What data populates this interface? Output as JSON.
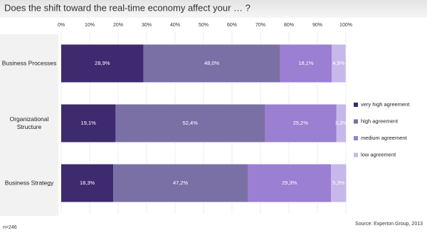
{
  "chart_data": {
    "type": "stacked-bar-horizontal",
    "title": "Does the shift toward the real-time economy affect your … ?",
    "categories": [
      "Business Processes",
      "Organizational Structure",
      "Business Strategy"
    ],
    "series": [
      {
        "name": "very high agreement",
        "color": "#3e2a6e",
        "values": [
          28.9,
          19.1,
          18.3
        ],
        "value_labels": [
          "28,9%",
          "19,1%",
          "18,3%"
        ]
      },
      {
        "name": "high agreement",
        "color": "#7a70a6",
        "values": [
          48.0,
          52.4,
          47.2
        ],
        "value_labels": [
          "48,0%",
          "52,4%",
          "47,2%"
        ]
      },
      {
        "name": "medium agreement",
        "color": "#9a7fd2",
        "values": [
          18.1,
          25.2,
          29.3
        ],
        "value_labels": [
          "18,1%",
          "25,2%",
          "29,3%"
        ]
      },
      {
        "name": "low agreement",
        "color": "#c6b8ea",
        "values": [
          4.9,
          3.3,
          5.3
        ],
        "value_labels": [
          "4,9%",
          "3,3%",
          "5,3%"
        ]
      }
    ],
    "xlim": [
      0,
      100
    ],
    "xticks": [
      {
        "value": 0,
        "label": "0%"
      },
      {
        "value": 10,
        "label": "10%"
      },
      {
        "value": 20,
        "label": "20%"
      },
      {
        "value": 30,
        "label": "30%"
      },
      {
        "value": 40,
        "label": "40%"
      },
      {
        "value": 50,
        "label": "50%"
      },
      {
        "value": 60,
        "label": "60%"
      },
      {
        "value": 70,
        "label": "70%"
      },
      {
        "value": 80,
        "label": "80%"
      },
      {
        "value": 90,
        "label": "90%"
      },
      {
        "value": 100,
        "label": "100%"
      }
    ],
    "grid": true,
    "legend": "right",
    "annotations": [
      "n=246",
      "Source: Experton Group, 2013"
    ]
  }
}
